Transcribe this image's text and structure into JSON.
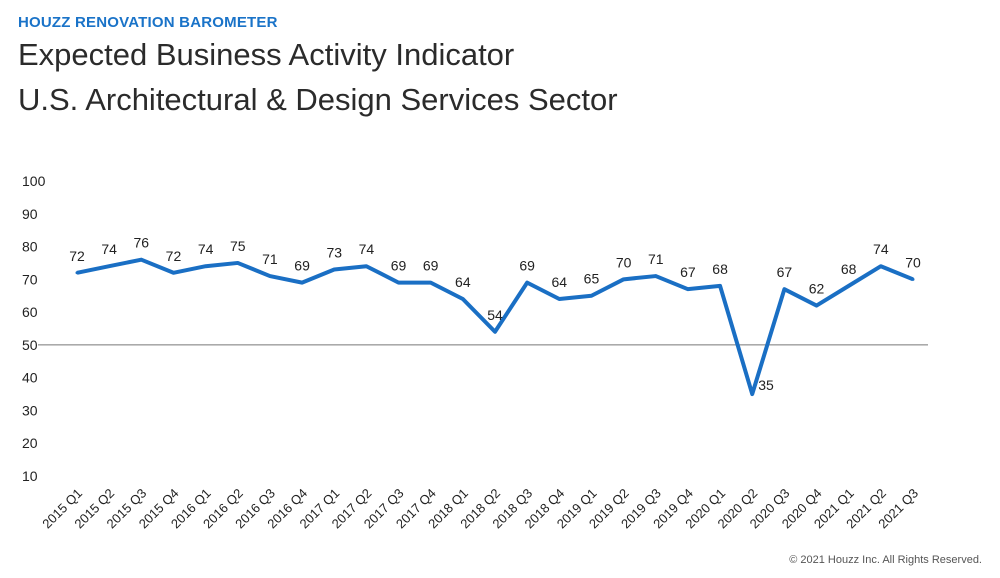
{
  "kicker": "HOUZZ RENOVATION BAROMETER",
  "title_line1": "Expected Business Activity Indicator",
  "title_line2": "U.S. Architectural & Design Services Sector",
  "copyright": "© 2021 Houzz Inc. All Rights Reserved.",
  "chart_data": {
    "type": "line",
    "title": "Expected Business Activity Indicator — U.S. Architectural & Design Services Sector",
    "xlabel": "",
    "ylabel": "",
    "ylim": [
      10,
      100
    ],
    "yticks": [
      10,
      20,
      30,
      40,
      50,
      60,
      70,
      80,
      90,
      100
    ],
    "reference_line": 50,
    "line_color": "#1a6fc4",
    "categories": [
      "2015 Q1",
      "2015 Q2",
      "2015 Q3",
      "2015 Q4",
      "2016 Q1",
      "2016 Q2",
      "2016 Q3",
      "2016 Q4",
      "2017 Q1",
      "2017 Q2",
      "2017 Q3",
      "2017 Q4",
      "2018 Q1",
      "2018 Q2",
      "2018 Q3",
      "2018 Q4",
      "2019 Q1",
      "2019 Q2",
      "2019 Q3",
      "2019 Q4",
      "2020 Q1",
      "2020 Q2",
      "2020 Q3",
      "2020 Q4",
      "2021 Q1",
      "2021 Q2",
      "2021 Q3"
    ],
    "values": [
      72,
      74,
      76,
      72,
      74,
      75,
      71,
      69,
      73,
      74,
      69,
      69,
      64,
      54,
      69,
      64,
      65,
      70,
      71,
      67,
      68,
      35,
      67,
      62,
      68,
      74,
      70
    ]
  }
}
